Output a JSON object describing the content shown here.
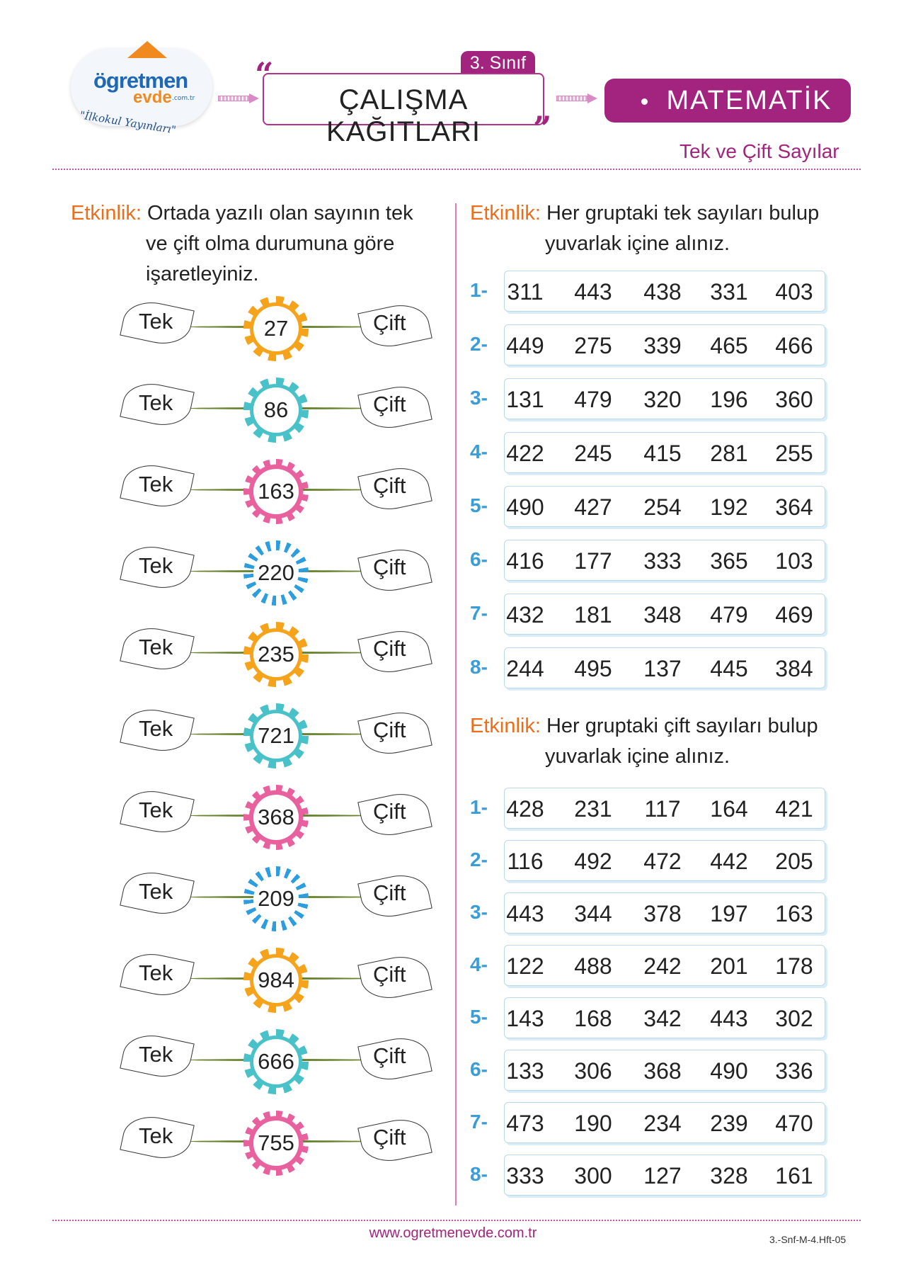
{
  "header": {
    "logo": {
      "brand_line1": "ögretmen",
      "brand_line2": "evde",
      "domain": ".com.tr",
      "subtitle": "\"İlkokul Yayınları\""
    },
    "grade": "3. Sınıf",
    "title": "ÇALIŞMA KAĞITLARI",
    "subject": "MATEMATİK",
    "topic": "Tek ve Çift Sayılar"
  },
  "left_activity": {
    "label": "Etkinlik:",
    "instruction_lines": [
      "Ortada yazılı olan sayının tek",
      "ve çift olma durumuna göre",
      "işaretleyiniz."
    ],
    "left_option": "Tek",
    "right_option": "Çift",
    "items": [
      {
        "number": "27",
        "color": "#f5a31b",
        "style": "round"
      },
      {
        "number": "86",
        "color": "#49c1c9",
        "style": "round"
      },
      {
        "number": "163",
        "color": "#e8609e",
        "style": "scallop"
      },
      {
        "number": "220",
        "color": "#2c9ee0",
        "style": "spiky"
      },
      {
        "number": "235",
        "color": "#f5a31b",
        "style": "round"
      },
      {
        "number": "721",
        "color": "#49c1c9",
        "style": "round"
      },
      {
        "number": "368",
        "color": "#e8609e",
        "style": "scallop"
      },
      {
        "number": "209",
        "color": "#2c9ee0",
        "style": "spiky"
      },
      {
        "number": "984",
        "color": "#f5a31b",
        "style": "round"
      },
      {
        "number": "666",
        "color": "#49c1c9",
        "style": "round"
      },
      {
        "number": "755",
        "color": "#e8609e",
        "style": "scallop"
      }
    ]
  },
  "odd_activity": {
    "label": "Etkinlik:",
    "instruction_lines": [
      "Her gruptaki tek sayıları bulup",
      "yuvarlak içine alınız."
    ],
    "rows": [
      {
        "index": "1-",
        "numbers": [
          "311",
          "443",
          "438",
          "331",
          "403"
        ]
      },
      {
        "index": "2-",
        "numbers": [
          "449",
          "275",
          "339",
          "465",
          "466"
        ]
      },
      {
        "index": "3-",
        "numbers": [
          "131",
          "479",
          "320",
          "196",
          "360"
        ]
      },
      {
        "index": "4-",
        "numbers": [
          "422",
          "245",
          "415",
          "281",
          "255"
        ]
      },
      {
        "index": "5-",
        "numbers": [
          "490",
          "427",
          "254",
          "192",
          "364"
        ]
      },
      {
        "index": "6-",
        "numbers": [
          "416",
          "177",
          "333",
          "365",
          "103"
        ]
      },
      {
        "index": "7-",
        "numbers": [
          "432",
          "181",
          "348",
          "479",
          "469"
        ]
      },
      {
        "index": "8-",
        "numbers": [
          "244",
          "495",
          "137",
          "445",
          "384"
        ]
      }
    ]
  },
  "even_activity": {
    "label": "Etkinlik:",
    "instruction_lines": [
      "Her gruptaki çift sayıları bulup",
      "yuvarlak içine alınız."
    ],
    "rows": [
      {
        "index": "1-",
        "numbers": [
          "428",
          "231",
          "117",
          "164",
          "421"
        ]
      },
      {
        "index": "2-",
        "numbers": [
          "116",
          "492",
          "472",
          "442",
          "205"
        ]
      },
      {
        "index": "3-",
        "numbers": [
          "443",
          "344",
          "378",
          "197",
          "163"
        ]
      },
      {
        "index": "4-",
        "numbers": [
          "122",
          "488",
          "242",
          "201",
          "178"
        ]
      },
      {
        "index": "5-",
        "numbers": [
          "143",
          "168",
          "342",
          "443",
          "302"
        ]
      },
      {
        "index": "6-",
        "numbers": [
          "133",
          "306",
          "368",
          "490",
          "336"
        ]
      },
      {
        "index": "7-",
        "numbers": [
          "473",
          "190",
          "234",
          "239",
          "470"
        ]
      },
      {
        "index": "8-",
        "numbers": [
          "333",
          "300",
          "127",
          "328",
          "161"
        ]
      }
    ]
  },
  "footer": {
    "url": "www.ogretmenevde.com.tr",
    "code": "3.-Snf-M-4.Hft-05"
  },
  "colors": {
    "magenta": "#a2247e",
    "orange": "#ee6d1a",
    "blue_index": "#3a9dd7",
    "stem": "#67822c"
  }
}
